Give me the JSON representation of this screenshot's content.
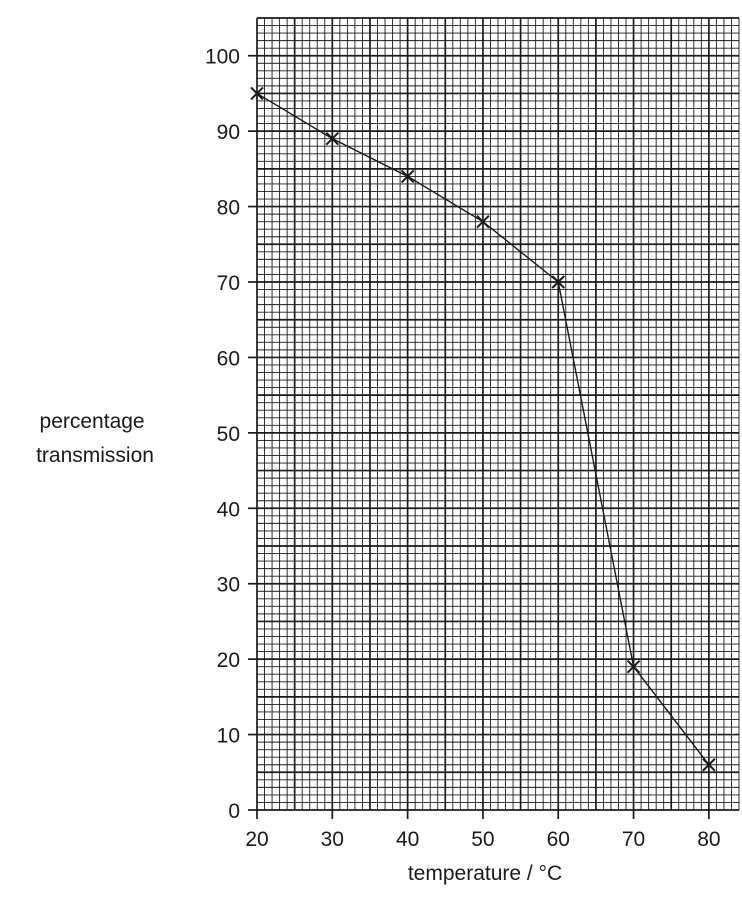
{
  "chart_data": {
    "type": "line",
    "title": "",
    "xlabel": "temperature / °C",
    "ylabel_lines": [
      "percentage",
      "transmission"
    ],
    "x": [
      20,
      30,
      40,
      50,
      60,
      70,
      80
    ],
    "series": [
      {
        "values": [
          95,
          89,
          84,
          78,
          70,
          19,
          6
        ]
      }
    ],
    "xlim": [
      20,
      84
    ],
    "ylim": [
      0,
      105
    ],
    "x_ticks": [
      20,
      30,
      40,
      50,
      60,
      70,
      80
    ],
    "y_ticks": [
      0,
      10,
      20,
      30,
      40,
      50,
      60,
      70,
      80,
      90,
      100
    ],
    "x_minor_step": 1,
    "y_minor_step": 1,
    "grid": true,
    "marker": "x",
    "colors": {
      "ink": "#1a1a1a",
      "background": "#ffffff"
    }
  }
}
